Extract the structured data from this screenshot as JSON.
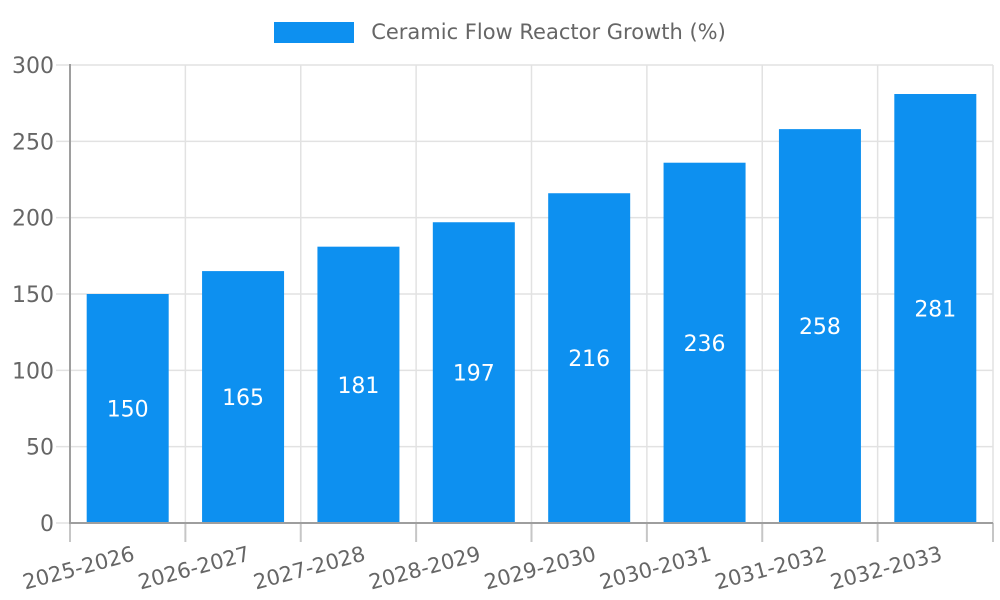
{
  "chart_data": {
    "type": "bar",
    "title": "Ceramic Flow Reactor Growth (%)",
    "categories": [
      "2025-2026",
      "2026-2027",
      "2027-2028",
      "2028-2029",
      "2029-2030",
      "2030-2031",
      "2031-2032",
      "2032-2033"
    ],
    "values": [
      150,
      165,
      181,
      197,
      216,
      236,
      258,
      281
    ],
    "xlabel": "",
    "ylabel": "",
    "ylim": [
      0,
      300
    ],
    "yticks": [
      0,
      50,
      100,
      150,
      200,
      250,
      300
    ],
    "grid": true,
    "legend_position": "top",
    "x_label_rotation": -15,
    "colors": {
      "bar": "#0D90F0",
      "value_label": "#FFFFFF",
      "axis": "#9E9E9E",
      "grid": "#E2E2E2",
      "tick": "#C6C6C6",
      "text": "#666666",
      "background": "#FFFFFF"
    }
  }
}
